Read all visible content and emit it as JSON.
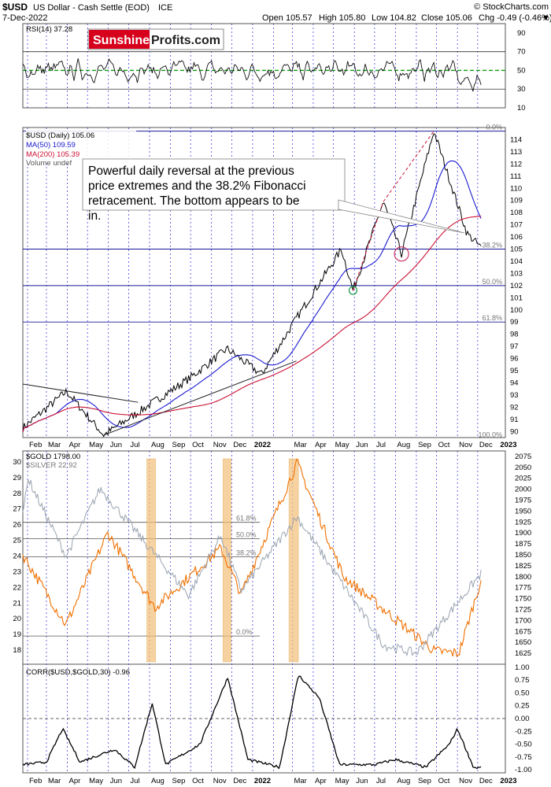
{
  "header": {
    "symbol": "$USD",
    "description": "US Dollar - Cash Settle (EOD)",
    "exchange": "ICE",
    "watermark": "© StockCharts.com",
    "date": "7-Dec-2022",
    "open": "Open 105.57",
    "high": "High 105.80",
    "low": "Low 104.82",
    "close": "Close 105.06",
    "change": "Chg -0.49 (-0.46%)",
    "change_marker": "▼"
  },
  "logo": {
    "part1": "Sunshine",
    "part2": "Profits.com"
  },
  "colors": {
    "price": "#000000",
    "ma50": "#1a1ad0",
    "ma200": "#cc1133",
    "gold": "#f07000",
    "silver": "#9aa4b0",
    "rsi_mid": "#119911",
    "grid": "#2b2bd8",
    "highlight": "#f5c07a"
  },
  "chart_data": [
    {
      "type": "line",
      "panel": "rsi",
      "legend": "RSI(14) 37.28",
      "last_value": 37.28,
      "ylim": [
        10,
        100
      ],
      "yticks": [
        10,
        30,
        50,
        70,
        90
      ],
      "reference_lines": [
        30,
        50,
        70
      ],
      "date_range": [
        "2021-01-25",
        "2022-12-07"
      ]
    },
    {
      "type": "line",
      "panel": "usd_price",
      "series": [
        {
          "name": "$USD (Daily) 105.06",
          "last_value": 105.06
        },
        {
          "name": "MA(50) 109.59",
          "last_value": 109.59
        },
        {
          "name": "MA(200) 105.39",
          "last_value": 105.39
        },
        {
          "name": "Volume undef"
        }
      ],
      "ylim": [
        89.5,
        115
      ],
      "yticks": [
        90,
        91,
        92,
        93,
        94,
        95,
        96,
        97,
        98,
        99,
        100,
        101,
        102,
        103,
        104,
        105,
        106,
        107,
        108,
        109,
        110,
        111,
        112,
        113,
        114
      ],
      "key_points": [
        {
          "date": "2021-01-25",
          "value": 90.3
        },
        {
          "date": "2021-03-31",
          "value": 93.3
        },
        {
          "date": "2021-05-25",
          "value": 89.7
        },
        {
          "date": "2021-09-30",
          "value": 94.4
        },
        {
          "date": "2021-11-24",
          "value": 96.8
        },
        {
          "date": "2022-01-14",
          "value": 94.7
        },
        {
          "date": "2022-03-07",
          "value": 99.3
        },
        {
          "date": "2022-05-13",
          "value": 105.0
        },
        {
          "date": "2022-05-30",
          "value": 101.6
        },
        {
          "date": "2022-07-14",
          "value": 108.9
        },
        {
          "date": "2022-08-10",
          "value": 104.6
        },
        {
          "date": "2022-09-27",
          "value": 114.7
        },
        {
          "date": "2022-11-15",
          "value": 106.3
        },
        {
          "date": "2022-12-07",
          "value": 105.06
        }
      ],
      "fibonacci_levels": [
        {
          "label": "0.0%",
          "value": 114.7
        },
        {
          "label": "38.2%",
          "value": 105.0
        },
        {
          "label": "50.0%",
          "value": 102.0
        },
        {
          "label": "61.8%",
          "value": 99.0
        },
        {
          "label": "100.0%",
          "value": 89.4
        }
      ],
      "annotation": "Powerful daily reversal at the previous price extremes and the 38.2% Fibonacci retracement. The bottom appears to be in."
    },
    {
      "type": "line",
      "panel": "gold_silver",
      "series": [
        {
          "name": "$GOLD 1798.00",
          "last_value": 1798.0
        },
        {
          "name": "$SILVER 22.92",
          "last_value": 22.92
        }
      ],
      "gold_ylim": [
        1600,
        2087.5
      ],
      "gold_yticks": [
        1625,
        1650,
        1675,
        1700,
        1725,
        1750,
        1775,
        1800,
        1825,
        1850,
        1875,
        1900,
        1925,
        1950,
        1975,
        2000,
        2025,
        2050,
        2075
      ],
      "silver_ylim": [
        17.1,
        30.7
      ],
      "silver_yticks": [
        18,
        19,
        20,
        21,
        22,
        23,
        24,
        25,
        26,
        27,
        28,
        29,
        30
      ],
      "fibonacci_levels": [
        {
          "label": "61.8%",
          "value": 26.15
        },
        {
          "label": "50.0%",
          "value": 25.1
        },
        {
          "label": "38.2%",
          "value": 23.95
        },
        {
          "label": "0.0%",
          "value": 18.9
        }
      ],
      "highlight_periods": [
        [
          "2021-07-28",
          "2021-08-10"
        ],
        [
          "2021-11-18",
          "2021-11-30"
        ],
        [
          "2022-02-24",
          "2022-03-10"
        ]
      ]
    },
    {
      "type": "line",
      "panel": "correlation",
      "legend": "CORR($USD,$GOLD,30) -0.96",
      "last_value": -0.96,
      "ylim": [
        -1.06,
        1.06
      ],
      "yticks": [
        -1.0,
        -0.75,
        -0.5,
        -0.25,
        0.0,
        0.25,
        0.5,
        0.75,
        1.0
      ],
      "reference_lines": [
        0
      ]
    }
  ],
  "x_axis": {
    "upper": [
      "Feb",
      "Mar",
      "Apr",
      "May",
      "Jun",
      "Jul",
      "Aug",
      "Sep",
      "Oct",
      "Nov",
      "Dec",
      "2022",
      "Mar",
      "Apr",
      "May",
      "Jun",
      "Jul",
      "Aug",
      "Sep",
      "Oct",
      "Nov",
      "Dec",
      "2023"
    ],
    "lower": [
      "Feb",
      "Mar",
      "Apr",
      "May",
      "Jun",
      "Jul",
      "Aug",
      "Sep",
      "Oct",
      "Nov",
      "Dec",
      "2022",
      "Mar",
      "Apr",
      "May",
      "Jun",
      "Jul",
      "Aug",
      "Sep",
      "Oct",
      "Nov",
      "Dec",
      "2023"
    ]
  }
}
